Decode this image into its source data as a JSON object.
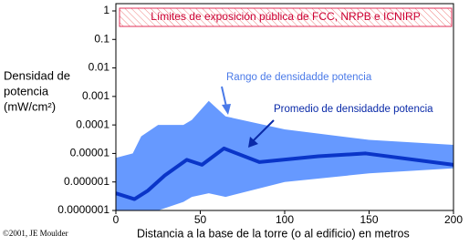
{
  "chart_data": {
    "type": "band-line",
    "ylabel": [
      "Densidad de",
      "potencia",
      "(mW/cm²)"
    ],
    "xlabel": "Distancia a la base de la  torre (o al edificio) en metros",
    "limits_label": "Límites de exposición pública de FCC, NRPB e ICNIRP",
    "copyright": "©2001, JE Moulder",
    "xlim": [
      0,
      200
    ],
    "xticks": [
      0,
      50,
      100,
      150,
      200
    ],
    "ylim": [
      1e-07,
      1.8
    ],
    "yscale": "log",
    "yticks": [
      {
        "value": 1e-07,
        "label": "0.0000001"
      },
      1e-06,
      1e-05,
      0.0001,
      0.001,
      0.01,
      0.1,
      1
    ],
    "band": {
      "name": "Rango de densidadde potencia",
      "color": "#6699ff",
      "x": [
        0,
        10,
        15,
        25,
        40,
        45,
        55,
        65,
        100,
        150,
        200
      ],
      "high": [
        7e-06,
        1e-05,
        4e-05,
        0.0001,
        0.0001,
        0.00015,
        0.0007,
        0.0002,
        7e-05,
        3e-05,
        2e-05
      ],
      "low": [
        1e-07,
        1e-07,
        1e-07,
        1e-07,
        2e-07,
        3e-07,
        4e-07,
        3e-07,
        1e-06,
        2e-06,
        3e-06
      ]
    },
    "series": [
      {
        "name": "Promedio de densidadde potencia",
        "color": "#0a35c8",
        "x": [
          0,
          11,
          19,
          29,
          42,
          51,
          64,
          85,
          120,
          148,
          200
        ],
        "values": [
          4e-07,
          2.5e-07,
          5e-07,
          1.7e-06,
          6e-06,
          4e-06,
          1.5e-05,
          5e-06,
          8e-06,
          1e-05,
          4e-06
        ]
      }
    ]
  }
}
